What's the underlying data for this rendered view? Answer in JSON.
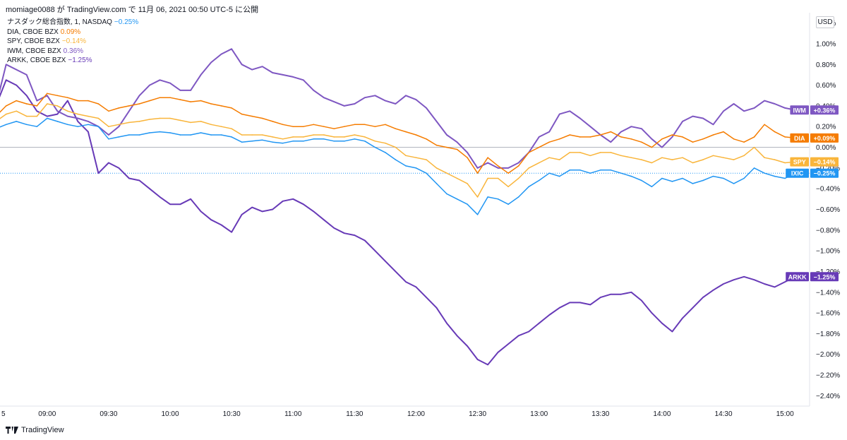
{
  "header": {
    "publish_line": "momiage0088 が TradingView.com で 11月 06, 2021 00:50 UTC-5 に公開"
  },
  "currency_label": "USD",
  "footer": {
    "brand": "TradingView"
  },
  "legend": [
    {
      "name": "ナスダック総合指数, 1, NASDAQ",
      "value": "−0.25%",
      "color": "#2196f3"
    },
    {
      "name": "DIA, CBOE BZX",
      "value": "0.09%",
      "color": "#f57c00"
    },
    {
      "name": "SPY, CBOE BZX",
      "value": "−0.14%",
      "color": "#f9b53b"
    },
    {
      "name": "IWM, CBOE BZX",
      "value": "0.36%",
      "color": "#7e57c2"
    },
    {
      "name": "ARKK, CBOE BZX",
      "value": "−1.25%",
      "color": "#673ab7"
    }
  ],
  "chart_data": {
    "type": "line",
    "x_tick_labels": [
      "5",
      "09:00",
      "09:30",
      "10:00",
      "10:30",
      "11:00",
      "11:30",
      "12:00",
      "12:30",
      "13:00",
      "13:30",
      "14:00",
      "14:30",
      "15:00"
    ],
    "y_tick_labels": [
      "1.20%",
      "1.00%",
      "0.80%",
      "0.60%",
      "0.40%",
      "0.20%",
      "0.00%",
      "−0.20%",
      "−0.40%",
      "−0.60%",
      "−0.80%",
      "−1.00%",
      "−1.20%",
      "−1.40%",
      "−1.60%",
      "−1.80%",
      "−2.00%",
      "−2.20%",
      "−2.40%"
    ],
    "ylim": [
      -2.5,
      1.3
    ],
    "xlim": [
      "08:37",
      "15:12"
    ],
    "zero_line": true,
    "grid": false,
    "series": [
      {
        "name": "ARKK",
        "color": "#673ab7",
        "badge_label": "ARKK",
        "badge_value": "−1.25%",
        "x": [
          "08:30",
          "08:35",
          "08:40",
          "08:45",
          "08:50",
          "08:55",
          "09:00",
          "09:05",
          "09:10",
          "09:15",
          "09:20",
          "09:25",
          "09:30",
          "09:35",
          "09:40",
          "09:45",
          "09:50",
          "09:55",
          "10:00",
          "10:05",
          "10:10",
          "10:15",
          "10:20",
          "10:25",
          "10:30",
          "10:35",
          "10:40",
          "10:45",
          "10:50",
          "10:55",
          "11:00",
          "11:05",
          "11:10",
          "11:15",
          "11:20",
          "11:25",
          "11:30",
          "11:35",
          "11:40",
          "11:45",
          "11:50",
          "11:55",
          "12:00",
          "12:05",
          "12:10",
          "12:15",
          "12:20",
          "12:25",
          "12:30",
          "12:35",
          "12:40",
          "12:45",
          "12:50",
          "12:55",
          "13:00",
          "13:05",
          "13:10",
          "13:15",
          "13:20",
          "13:25",
          "13:30",
          "13:35",
          "13:40",
          "13:45",
          "13:50",
          "13:55",
          "14:00",
          "14:05",
          "14:10",
          "14:15",
          "14:20",
          "14:25",
          "14:30",
          "14:35",
          "14:40",
          "14:45",
          "14:50",
          "14:55",
          "15:00",
          "15:05"
        ],
        "y": [
          0.05,
          0.4,
          0.65,
          0.6,
          0.5,
          0.35,
          0.3,
          0.32,
          0.45,
          0.25,
          0.15,
          -0.25,
          -0.15,
          -0.2,
          -0.3,
          -0.32,
          -0.4,
          -0.48,
          -0.55,
          -0.55,
          -0.5,
          -0.62,
          -0.7,
          -0.75,
          -0.82,
          -0.65,
          -0.58,
          -0.62,
          -0.6,
          -0.52,
          -0.5,
          -0.55,
          -0.62,
          -0.7,
          -0.78,
          -0.83,
          -0.85,
          -0.9,
          -1.0,
          -1.1,
          -1.2,
          -1.3,
          -1.35,
          -1.45,
          -1.55,
          -1.7,
          -1.82,
          -1.92,
          -2.05,
          -2.1,
          -1.98,
          -1.9,
          -1.82,
          -1.78,
          -1.7,
          -1.62,
          -1.55,
          -1.5,
          -1.5,
          -1.52,
          -1.45,
          -1.42,
          -1.42,
          -1.4,
          -1.48,
          -1.6,
          -1.7,
          -1.78,
          -1.65,
          -1.55,
          -1.45,
          -1.38,
          -1.32,
          -1.28,
          -1.25,
          -1.28,
          -1.32,
          -1.35,
          -1.3,
          -1.25
        ]
      },
      {
        "name": "IWM",
        "color": "#7e57c2",
        "badge_label": "IWM",
        "badge_value": "+0.36%",
        "x": [
          "08:30",
          "08:35",
          "08:40",
          "08:45",
          "08:50",
          "08:55",
          "09:00",
          "09:05",
          "09:10",
          "09:15",
          "09:20",
          "09:25",
          "09:30",
          "09:35",
          "09:40",
          "09:45",
          "09:50",
          "09:55",
          "10:00",
          "10:05",
          "10:10",
          "10:15",
          "10:20",
          "10:25",
          "10:30",
          "10:35",
          "10:40",
          "10:45",
          "10:50",
          "10:55",
          "11:00",
          "11:05",
          "11:10",
          "11:15",
          "11:20",
          "11:25",
          "11:30",
          "11:35",
          "11:40",
          "11:45",
          "11:50",
          "11:55",
          "12:00",
          "12:05",
          "12:10",
          "12:15",
          "12:20",
          "12:25",
          "12:30",
          "12:35",
          "12:40",
          "12:45",
          "12:50",
          "12:55",
          "13:00",
          "13:05",
          "13:10",
          "13:15",
          "13:20",
          "13:25",
          "13:30",
          "13:35",
          "13:40",
          "13:45",
          "13:50",
          "13:55",
          "14:00",
          "14:05",
          "14:10",
          "14:15",
          "14:20",
          "14:25",
          "14:30",
          "14:35",
          "14:40",
          "14:45",
          "14:50",
          "14:55",
          "15:00",
          "15:05"
        ],
        "y": [
          -0.1,
          0.4,
          0.8,
          0.75,
          0.7,
          0.45,
          0.5,
          0.35,
          0.3,
          0.28,
          0.25,
          0.2,
          0.12,
          0.2,
          0.35,
          0.5,
          0.6,
          0.65,
          0.62,
          0.55,
          0.55,
          0.7,
          0.82,
          0.9,
          0.95,
          0.8,
          0.75,
          0.78,
          0.72,
          0.7,
          0.68,
          0.65,
          0.55,
          0.48,
          0.44,
          0.4,
          0.42,
          0.48,
          0.5,
          0.45,
          0.42,
          0.5,
          0.46,
          0.38,
          0.25,
          0.12,
          0.05,
          -0.05,
          -0.2,
          -0.15,
          -0.2,
          -0.2,
          -0.15,
          -0.05,
          0.1,
          0.15,
          0.32,
          0.35,
          0.28,
          0.2,
          0.12,
          0.05,
          0.15,
          0.2,
          0.18,
          0.08,
          0.0,
          0.1,
          0.25,
          0.3,
          0.28,
          0.22,
          0.35,
          0.42,
          0.35,
          0.38,
          0.45,
          0.42,
          0.38,
          0.36
        ]
      },
      {
        "name": "DIA",
        "color": "#f57c00",
        "badge_label": "DIA",
        "badge_value": "+0.09%",
        "x": [
          "08:30",
          "08:35",
          "08:40",
          "08:45",
          "08:50",
          "08:55",
          "09:00",
          "09:05",
          "09:10",
          "09:15",
          "09:20",
          "09:25",
          "09:30",
          "09:35",
          "09:40",
          "09:45",
          "09:50",
          "09:55",
          "10:00",
          "10:05",
          "10:10",
          "10:15",
          "10:20",
          "10:25",
          "10:30",
          "10:35",
          "10:40",
          "10:45",
          "10:50",
          "10:55",
          "11:00",
          "11:05",
          "11:10",
          "11:15",
          "11:20",
          "11:25",
          "11:30",
          "11:35",
          "11:40",
          "11:45",
          "11:50",
          "11:55",
          "12:00",
          "12:05",
          "12:10",
          "12:15",
          "12:20",
          "12:25",
          "12:30",
          "12:35",
          "12:40",
          "12:45",
          "12:50",
          "12:55",
          "13:00",
          "13:05",
          "13:10",
          "13:15",
          "13:20",
          "13:25",
          "13:30",
          "13:35",
          "13:40",
          "13:45",
          "13:50",
          "13:55",
          "14:00",
          "14:05",
          "14:10",
          "14:15",
          "14:20",
          "14:25",
          "14:30",
          "14:35",
          "14:40",
          "14:45",
          "14:50",
          "14:55",
          "15:00",
          "15:05"
        ],
        "y": [
          0.0,
          0.3,
          0.4,
          0.45,
          0.42,
          0.4,
          0.52,
          0.5,
          0.48,
          0.45,
          0.45,
          0.42,
          0.35,
          0.38,
          0.4,
          0.42,
          0.45,
          0.48,
          0.48,
          0.46,
          0.44,
          0.45,
          0.42,
          0.4,
          0.38,
          0.32,
          0.3,
          0.28,
          0.25,
          0.22,
          0.2,
          0.2,
          0.22,
          0.2,
          0.18,
          0.2,
          0.22,
          0.22,
          0.2,
          0.22,
          0.18,
          0.15,
          0.12,
          0.08,
          0.02,
          0.0,
          -0.02,
          -0.1,
          -0.25,
          -0.1,
          -0.18,
          -0.25,
          -0.18,
          -0.05,
          0.0,
          0.05,
          0.08,
          0.12,
          0.1,
          0.1,
          0.12,
          0.15,
          0.1,
          0.08,
          0.05,
          0.0,
          0.08,
          0.12,
          0.1,
          0.05,
          0.08,
          0.12,
          0.15,
          0.08,
          0.05,
          0.1,
          0.22,
          0.15,
          0.1,
          0.09
        ]
      },
      {
        "name": "SPY",
        "color": "#f9b53b",
        "badge_label": "SPY",
        "badge_value": "−0.14%",
        "x": [
          "08:30",
          "08:35",
          "08:40",
          "08:45",
          "08:50",
          "08:55",
          "09:00",
          "09:05",
          "09:10",
          "09:15",
          "09:20",
          "09:25",
          "09:30",
          "09:35",
          "09:40",
          "09:45",
          "09:50",
          "09:55",
          "10:00",
          "10:05",
          "10:10",
          "10:15",
          "10:20",
          "10:25",
          "10:30",
          "10:35",
          "10:40",
          "10:45",
          "10:50",
          "10:55",
          "11:00",
          "11:05",
          "11:10",
          "11:15",
          "11:20",
          "11:25",
          "11:30",
          "11:35",
          "11:40",
          "11:45",
          "11:50",
          "11:55",
          "12:00",
          "12:05",
          "12:10",
          "12:15",
          "12:20",
          "12:25",
          "12:30",
          "12:35",
          "12:40",
          "12:45",
          "12:50",
          "12:55",
          "13:00",
          "13:05",
          "13:10",
          "13:15",
          "13:20",
          "13:25",
          "13:30",
          "13:35",
          "13:40",
          "13:45",
          "13:50",
          "13:55",
          "14:00",
          "14:05",
          "14:10",
          "14:15",
          "14:20",
          "14:25",
          "14:30",
          "14:35",
          "14:40",
          "14:45",
          "14:50",
          "14:55",
          "15:00",
          "15:05"
        ],
        "y": [
          0.0,
          0.25,
          0.32,
          0.35,
          0.3,
          0.3,
          0.42,
          0.4,
          0.35,
          0.32,
          0.3,
          0.28,
          0.2,
          0.22,
          0.24,
          0.25,
          0.27,
          0.28,
          0.28,
          0.26,
          0.24,
          0.25,
          0.22,
          0.2,
          0.18,
          0.12,
          0.12,
          0.12,
          0.1,
          0.08,
          0.1,
          0.1,
          0.12,
          0.12,
          0.1,
          0.1,
          0.12,
          0.1,
          0.06,
          0.04,
          0.0,
          -0.08,
          -0.1,
          -0.12,
          -0.2,
          -0.25,
          -0.3,
          -0.35,
          -0.48,
          -0.3,
          -0.3,
          -0.38,
          -0.3,
          -0.2,
          -0.15,
          -0.1,
          -0.12,
          -0.05,
          -0.05,
          -0.08,
          -0.05,
          -0.05,
          -0.08,
          -0.1,
          -0.12,
          -0.15,
          -0.1,
          -0.12,
          -0.1,
          -0.15,
          -0.12,
          -0.08,
          -0.1,
          -0.12,
          -0.08,
          0.0,
          -0.1,
          -0.12,
          -0.15,
          -0.14
        ]
      },
      {
        "name": "IXIC",
        "color": "#2196f3",
        "badge_label": "IXIC",
        "badge_value": "−0.25%",
        "x": [
          "08:30",
          "08:35",
          "08:40",
          "08:45",
          "08:50",
          "08:55",
          "09:00",
          "09:05",
          "09:10",
          "09:15",
          "09:20",
          "09:25",
          "09:30",
          "09:35",
          "09:40",
          "09:45",
          "09:50",
          "09:55",
          "10:00",
          "10:05",
          "10:10",
          "10:15",
          "10:20",
          "10:25",
          "10:30",
          "10:35",
          "10:40",
          "10:45",
          "10:50",
          "10:55",
          "11:00",
          "11:05",
          "11:10",
          "11:15",
          "11:20",
          "11:25",
          "11:30",
          "11:35",
          "11:40",
          "11:45",
          "11:50",
          "11:55",
          "12:00",
          "12:05",
          "12:10",
          "12:15",
          "12:20",
          "12:25",
          "12:30",
          "12:35",
          "12:40",
          "12:45",
          "12:50",
          "12:55",
          "13:00",
          "13:05",
          "13:10",
          "13:15",
          "13:20",
          "13:25",
          "13:30",
          "13:35",
          "13:40",
          "13:45",
          "13:50",
          "13:55",
          "14:00",
          "14:05",
          "14:10",
          "14:15",
          "14:20",
          "14:25",
          "14:30",
          "14:35",
          "14:40",
          "14:45",
          "14:50",
          "14:55",
          "15:00",
          "15:05"
        ],
        "y": [
          0.0,
          0.18,
          0.22,
          0.25,
          0.22,
          0.2,
          0.28,
          0.25,
          0.22,
          0.2,
          0.22,
          0.2,
          0.08,
          0.1,
          0.12,
          0.12,
          0.14,
          0.15,
          0.14,
          0.12,
          0.12,
          0.14,
          0.12,
          0.12,
          0.1,
          0.05,
          0.06,
          0.07,
          0.05,
          0.04,
          0.06,
          0.06,
          0.08,
          0.08,
          0.06,
          0.06,
          0.08,
          0.06,
          0.0,
          -0.05,
          -0.12,
          -0.18,
          -0.2,
          -0.25,
          -0.35,
          -0.45,
          -0.5,
          -0.55,
          -0.65,
          -0.48,
          -0.5,
          -0.55,
          -0.48,
          -0.38,
          -0.32,
          -0.25,
          -0.28,
          -0.22,
          -0.22,
          -0.25,
          -0.22,
          -0.22,
          -0.25,
          -0.28,
          -0.32,
          -0.38,
          -0.3,
          -0.33,
          -0.3,
          -0.35,
          -0.32,
          -0.28,
          -0.3,
          -0.35,
          -0.3,
          -0.2,
          -0.25,
          -0.28,
          -0.3,
          -0.25
        ]
      }
    ]
  }
}
